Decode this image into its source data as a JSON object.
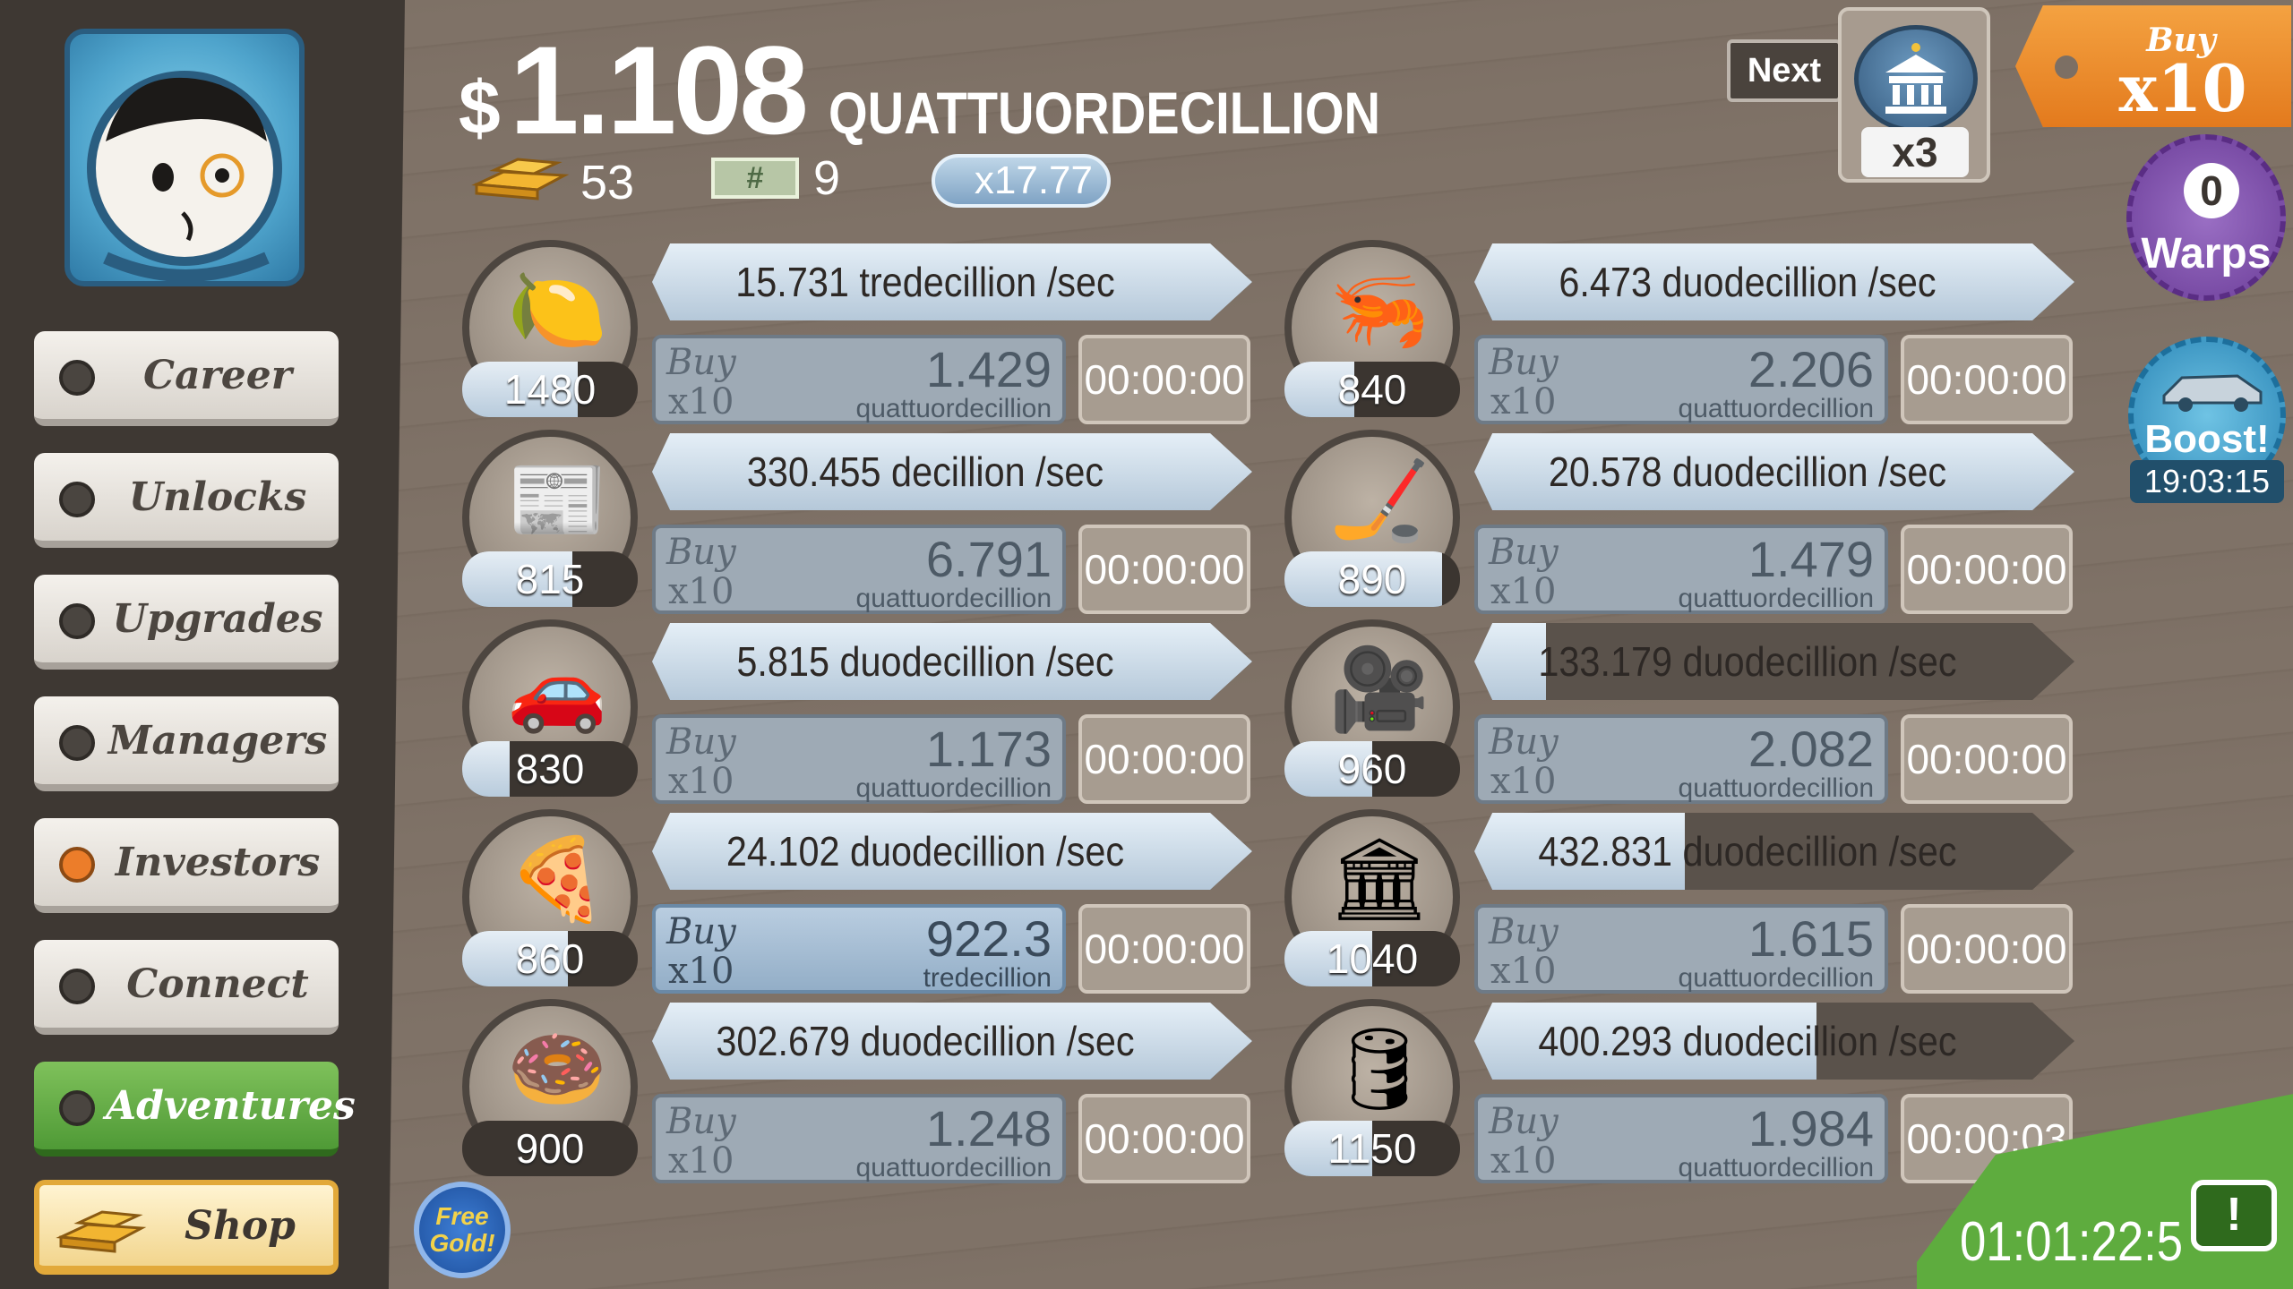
{
  "money": {
    "symbol": "$",
    "amount": "1.108",
    "unit": "QUATTUORDECILLION"
  },
  "stats": {
    "gold": "53",
    "megabucks": "9",
    "megabuck_symbol": "#",
    "multiplier": "x17.77"
  },
  "next_unlock": {
    "button_label": "Next",
    "multiplier": "x3",
    "icon": "bank-icon"
  },
  "buy_tag": {
    "line1": "Buy",
    "line2": "x10"
  },
  "warps": {
    "count": "0",
    "label": "Warps"
  },
  "boost": {
    "label": "Boost!",
    "timer": "19:03:15"
  },
  "sidebar": {
    "items": [
      {
        "label": "Career",
        "active": false
      },
      {
        "label": "Unlocks",
        "active": false
      },
      {
        "label": "Upgrades",
        "active": false
      },
      {
        "label": "Managers",
        "active": false
      },
      {
        "label": "Investors",
        "active": true
      },
      {
        "label": "Connect",
        "active": false
      },
      {
        "label": "Adventures",
        "active": false
      }
    ],
    "shop_label": "Shop"
  },
  "businesses": [
    {
      "icon": "lemon-icon",
      "glyph": "🍋",
      "count": "1480",
      "count_progress": 0.66,
      "rate": "15.731 tredecillion /sec",
      "rate_progress": 1.0,
      "buy1": "Buy",
      "buy2": "x10",
      "cost": "1.429",
      "cost_unit": "quattuordecillion",
      "affordable": false,
      "timer": "00:00:00"
    },
    {
      "icon": "newspaper-icon",
      "glyph": "📰",
      "count": "815",
      "count_progress": 0.63,
      "rate": "330.455 decillion /sec",
      "rate_progress": 1.0,
      "buy1": "Buy",
      "buy2": "x10",
      "cost": "6.791",
      "cost_unit": "quattuordecillion",
      "affordable": false,
      "timer": "00:00:00"
    },
    {
      "icon": "car-wash-icon",
      "glyph": "🚗",
      "count": "830",
      "count_progress": 0.27,
      "rate": "5.815 duodecillion /sec",
      "rate_progress": 1.0,
      "buy1": "Buy",
      "buy2": "x10",
      "cost": "1.173",
      "cost_unit": "quattuordecillion",
      "affordable": false,
      "timer": "00:00:00"
    },
    {
      "icon": "pizza-icon",
      "glyph": "🍕",
      "count": "860",
      "count_progress": 0.6,
      "rate": "24.102 duodecillion /sec",
      "rate_progress": 1.0,
      "buy1": "Buy",
      "buy2": "x10",
      "cost": "922.3",
      "cost_unit": "tredecillion",
      "affordable": true,
      "timer": "00:00:00"
    },
    {
      "icon": "donut-icon",
      "glyph": "🍩",
      "count": "900",
      "count_progress": 0.0,
      "rate": "302.679 duodecillion /sec",
      "rate_progress": 1.0,
      "buy1": "Buy",
      "buy2": "x10",
      "cost": "1.248",
      "cost_unit": "quattuordecillion",
      "affordable": false,
      "timer": "00:00:00"
    },
    {
      "icon": "shrimp-icon",
      "glyph": "🦐",
      "count": "840",
      "count_progress": 0.4,
      "rate": "6.473 duodecillion /sec",
      "rate_progress": 1.0,
      "buy1": "Buy",
      "buy2": "x10",
      "cost": "2.206",
      "cost_unit": "quattuordecillion",
      "affordable": false,
      "timer": "00:00:00"
    },
    {
      "icon": "hockey-icon",
      "glyph": "🏒",
      "count": "890",
      "count_progress": 0.9,
      "rate": "20.578 duodecillion /sec",
      "rate_progress": 1.0,
      "buy1": "Buy",
      "buy2": "x10",
      "cost": "1.479",
      "cost_unit": "quattuordecillion",
      "affordable": false,
      "timer": "00:00:00"
    },
    {
      "icon": "movie-camera-icon",
      "glyph": "🎥",
      "count": "960",
      "count_progress": 0.5,
      "rate": "133.179 duodecillion /sec",
      "rate_progress": 0.12,
      "buy1": "Buy",
      "buy2": "x10",
      "cost": "2.082",
      "cost_unit": "quattuordecillion",
      "affordable": false,
      "timer": "00:00:00"
    },
    {
      "icon": "bank-icon",
      "glyph": "🏛",
      "count": "1040",
      "count_progress": 0.5,
      "rate": "432.831 duodecillion /sec",
      "rate_progress": 0.35,
      "buy1": "Buy",
      "buy2": "x10",
      "cost": "1.615",
      "cost_unit": "quattuordecillion",
      "affordable": false,
      "timer": "00:00:00"
    },
    {
      "icon": "oil-rig-icon",
      "glyph": "🛢",
      "count": "1150",
      "count_progress": 0.5,
      "rate": "400.293 duodecillion /sec",
      "rate_progress": 0.57,
      "buy1": "Buy",
      "buy2": "x10",
      "cost": "1.984",
      "cost_unit": "quattuordecillion",
      "affordable": false,
      "timer": "00:00:03"
    }
  ],
  "free_gold": "Free Gold!",
  "event_timer": "01:01:22:5"
}
